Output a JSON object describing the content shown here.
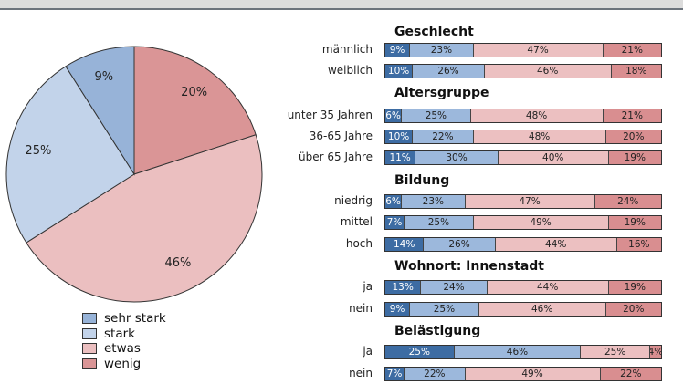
{
  "chart_data": [
    {
      "type": "pie",
      "start": "top",
      "direction": "clockwise",
      "categories": [
        "wenig",
        "etwas",
        "stark",
        "sehr stark"
      ],
      "values": [
        20,
        46,
        25,
        9
      ],
      "labels": [
        "20%",
        "46%",
        "25%",
        "9%"
      ],
      "colors": [
        "#da9596",
        "#ebbfc0",
        "#c2d3ea",
        "#97b3d8"
      ]
    },
    {
      "type": "bar",
      "orientation": "horizontal",
      "stacked": true,
      "percent": true,
      "series_names": [
        "sehr stark",
        "stark",
        "etwas",
        "wenig"
      ],
      "colors": [
        "#3d6ca3",
        "#9cb8dc",
        "#ecc0c1",
        "#d98e90"
      ],
      "groups": [
        {
          "title": "Geschlecht",
          "rows": [
            {
              "label": "männlich",
              "values": [
                9,
                23,
                47,
                21
              ]
            },
            {
              "label": "weiblich",
              "values": [
                10,
                26,
                46,
                18
              ]
            }
          ]
        },
        {
          "title": "Altersgruppe",
          "rows": [
            {
              "label": "unter 35 Jahren",
              "values": [
                6,
                25,
                48,
                21
              ]
            },
            {
              "label": "36-65 Jahre",
              "values": [
                10,
                22,
                48,
                20
              ]
            },
            {
              "label": "über 65 Jahre",
              "values": [
                11,
                30,
                40,
                19
              ]
            }
          ]
        },
        {
          "title": "Bildung",
          "rows": [
            {
              "label": "niedrig",
              "values": [
                6,
                23,
                47,
                24
              ]
            },
            {
              "label": "mittel",
              "values": [
                7,
                25,
                49,
                19
              ]
            },
            {
              "label": "hoch",
              "values": [
                14,
                26,
                44,
                16
              ]
            }
          ]
        },
        {
          "title": "Wohnort: Innenstadt",
          "rows": [
            {
              "label": "ja",
              "values": [
                13,
                24,
                44,
                19
              ]
            },
            {
              "label": "nein",
              "values": [
                9,
                25,
                46,
                20
              ]
            }
          ]
        },
        {
          "title": "Belästigung",
          "rows": [
            {
              "label": "ja",
              "values": [
                25,
                46,
                25,
                4
              ]
            },
            {
              "label": "nein",
              "values": [
                7,
                22,
                49,
                22
              ]
            }
          ]
        }
      ]
    }
  ],
  "legend": {
    "items": [
      {
        "label": "sehr stark",
        "color": "#97b3d8"
      },
      {
        "label": "stark",
        "color": "#c2d3ea"
      },
      {
        "label": "etwas",
        "color": "#ebbfc0"
      },
      {
        "label": "wenig",
        "color": "#da9596"
      }
    ]
  }
}
